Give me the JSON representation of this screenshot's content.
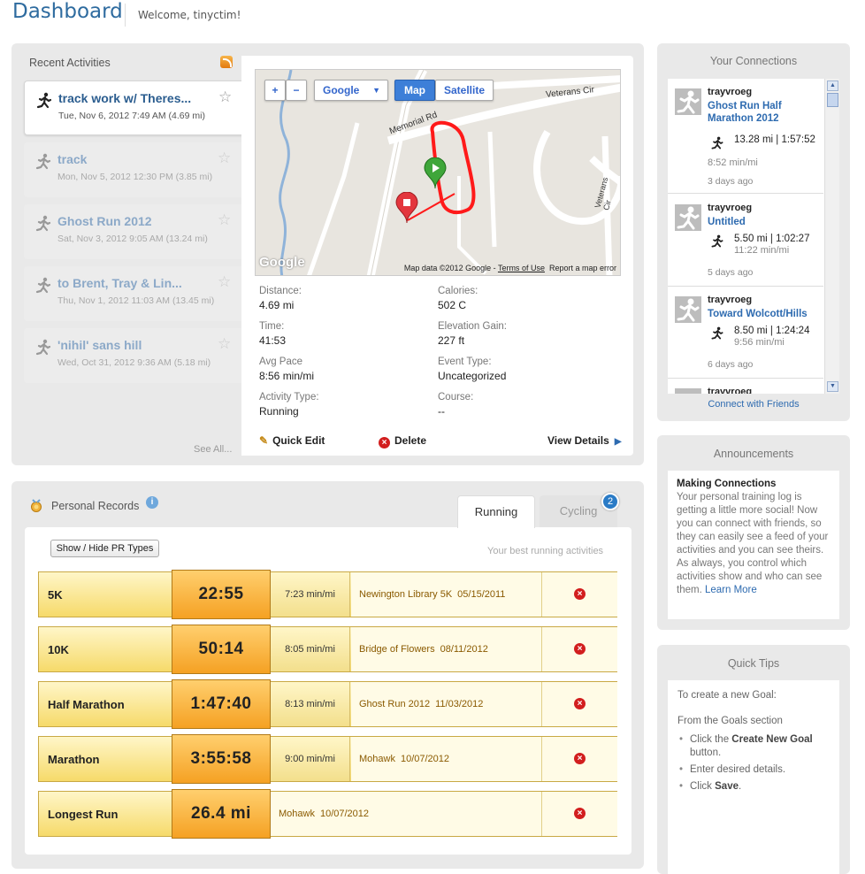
{
  "header": {
    "title": "Dashboard",
    "welcome": "Welcome, tinyctim!"
  },
  "recent": {
    "title": "Recent Activities",
    "see_all": "See All...",
    "items": [
      {
        "name": "track work w/ Theres...",
        "meta": "Tue, Nov 6, 2012 7:49 AM (4.69 mi)"
      },
      {
        "name": "track",
        "meta": "Mon, Nov 5, 2012 12:30 PM (3.85 mi)"
      },
      {
        "name": "Ghost Run 2012",
        "meta": "Sat, Nov 3, 2012 9:05 AM (13.24 mi)"
      },
      {
        "name": "to Brent, Tray & Lin...",
        "meta": "Thu, Nov 1, 2012 11:03 AM (13.45 mi)"
      },
      {
        "name": "'nihil' sans hill",
        "meta": "Wed, Oct 31, 2012 9:36 AM (5.18 mi)"
      }
    ]
  },
  "map": {
    "zoom_in": "+",
    "zoom_out": "−",
    "provider": "Google",
    "map_tab": "Map",
    "satellite_tab": "Satellite",
    "road_1": "Memorial Rd",
    "road_2": "Veterans Cir",
    "road_3": "Veterans Cir",
    "footer_data": "Map data ©2012 Google - ",
    "footer_terms": "Terms of Use",
    "footer_report": "Report a map error",
    "logo": "Google"
  },
  "detail": {
    "distance_label": "Distance:",
    "distance": "4.69 mi",
    "calories_label": "Calories:",
    "calories": "502 C",
    "time_label": "Time:",
    "time": "41:53",
    "elev_label": "Elevation Gain:",
    "elev": "227 ft",
    "pace_label": "Avg Pace",
    "pace": "8:56 min/mi",
    "event_label": "Event Type:",
    "event": "Uncategorized",
    "type_label": "Activity Type:",
    "type": "Running",
    "course_label": "Course:",
    "course": "--",
    "quick_edit": "Quick Edit",
    "delete": "Delete",
    "view_details": "View Details"
  },
  "pr": {
    "title": "Personal Records",
    "info": "i",
    "tab_running": "Running",
    "tab_cycling": "Cycling",
    "cycling_badge": "2",
    "toggle": "Show / Hide PR Types",
    "best": "Your best running activities",
    "rows": [
      {
        "label": "5K",
        "time": "22:55",
        "pace": "7:23 min/mi",
        "event": "Newington Library 5K",
        "date": "05/15/2011"
      },
      {
        "label": "10K",
        "time": "50:14",
        "pace": "8:05 min/mi",
        "event": "Bridge of Flowers",
        "date": "08/11/2012"
      },
      {
        "label": "Half Marathon",
        "time": "1:47:40",
        "pace": "8:13 min/mi",
        "event": "Ghost Run 2012",
        "date": "11/03/2012"
      },
      {
        "label": "Marathon",
        "time": "3:55:58",
        "pace": "9:00 min/mi",
        "event": "Mohawk",
        "date": "10/07/2012"
      },
      {
        "label": "Longest Run",
        "time": "26.4 mi",
        "pace": "",
        "event": "Mohawk",
        "date": "10/07/2012"
      }
    ]
  },
  "connections": {
    "title": "Your Connections",
    "link": "Connect with Friends",
    "items": [
      {
        "user": "trayvroeg",
        "activity": "Ghost Run Half Marathon 2012",
        "dist": "13.28 mi | 1:57:52",
        "pace": "8:52 min/mi",
        "ago": "3 days ago"
      },
      {
        "user": "trayvroeg",
        "activity": "Untitled",
        "dist": "5.50 mi | 1:02:27",
        "pace": "11:22 min/mi",
        "ago": "5 days ago"
      },
      {
        "user": "trayvroeg",
        "activity": "Toward Wolcott/Hills",
        "dist": "8.50 mi | 1:24:24",
        "pace": "9:56 min/mi",
        "ago": "6 days ago"
      },
      {
        "user": "trayvroeg",
        "activity": "",
        "dist": "",
        "pace": "",
        "ago": ""
      }
    ]
  },
  "announcements": {
    "title": "Announcements",
    "heading": "Making Connections",
    "text": "Your personal training log is getting a little more social! Now you can connect with friends, so they can easily see a feed of your activities and you can see theirs. As always, you control which activities show and who can see them. ",
    "link": "Learn More"
  },
  "tips": {
    "title": "Quick Tips",
    "intro": "To create a new Goal:",
    "from": "From the Goals section",
    "step1_a": "Click the ",
    "step1_b": "Create New Goal",
    "step1_c": " button.",
    "step2": "Enter desired details.",
    "step3_a": "Click ",
    "step3_b": "Save",
    "step3_c": "."
  },
  "colors": {
    "brand": "#2e6b9f",
    "link": "#2e6bb0",
    "pr_gold": "#f5a123",
    "route": "#ff1a1a"
  }
}
